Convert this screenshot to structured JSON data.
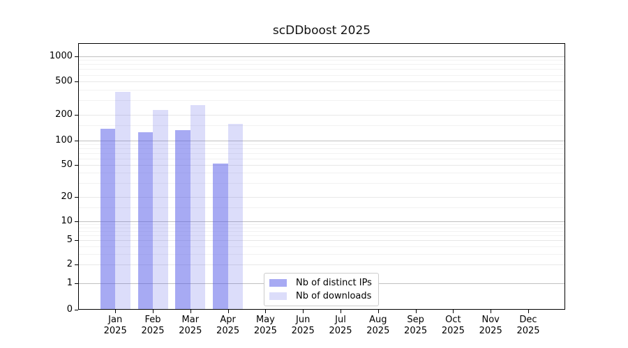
{
  "title": "scDDboost 2025",
  "colors": {
    "bar_base": "#5055e8",
    "bar_distinct_ips": "rgba(80,85,232,0.5)",
    "bar_downloads": "rgba(80,85,232,0.2)",
    "grid_decade": "#c0c0c0",
    "grid_major": "#e7e7e7",
    "grid_minor": "#f2f2f2",
    "spine": "#000000",
    "legend_border": "#cccccc"
  },
  "chart_data": {
    "type": "bar",
    "title": "scDDboost 2025",
    "categories": [
      "Jan",
      "Feb",
      "Mar",
      "Apr",
      "May",
      "Jun",
      "Jul",
      "Aug",
      "Sep",
      "Oct",
      "Nov",
      "Dec"
    ],
    "category_year": "2025",
    "series": [
      {
        "name": "Nb of distinct IPs",
        "color": "rgba(80,85,232,0.5)",
        "values": [
          137,
          126,
          132,
          52,
          0,
          0,
          0,
          0,
          0,
          0,
          0,
          0
        ]
      },
      {
        "name": "Nb of downloads",
        "color": "rgba(80,85,232,0.2)",
        "values": [
          380,
          228,
          265,
          157,
          0,
          0,
          0,
          0,
          0,
          0,
          0,
          0
        ]
      }
    ],
    "xlabel": "",
    "ylabel": "",
    "yscale": "symlog",
    "ylim": [
      0,
      1400
    ],
    "y_ticks": [
      0,
      1,
      2,
      5,
      10,
      20,
      50,
      100,
      200,
      500,
      1000
    ],
    "y_decade_ticks": [
      1,
      10,
      100,
      1000
    ],
    "y_minor_ticks": [
      3,
      4,
      6,
      7,
      8,
      9,
      15,
      30,
      40,
      60,
      70,
      80,
      90,
      150,
      300,
      400,
      600,
      700,
      800,
      900
    ],
    "grid": "horizontal",
    "legend_position": "bottom-center"
  },
  "legend": {
    "items": [
      "Nb of distinct IPs",
      "Nb of downloads"
    ]
  }
}
